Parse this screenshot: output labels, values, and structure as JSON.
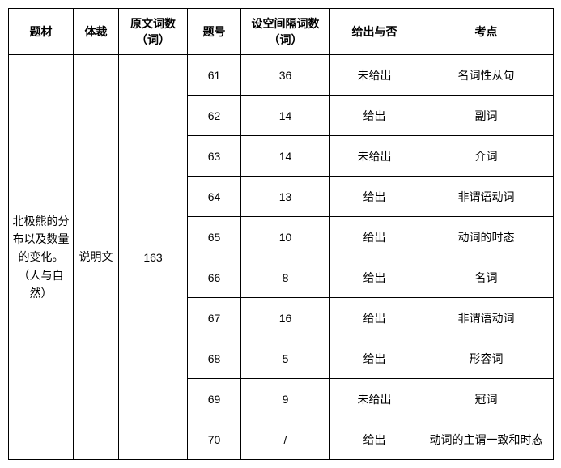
{
  "headers": {
    "topic": "题材",
    "genre": "体裁",
    "words": "原文词数（词）",
    "qnum": "题号",
    "gap": "设空间隔词数（词）",
    "given": "给出与否",
    "point": "考点"
  },
  "merged": {
    "topic": "北极熊的分布以及数量的变化。（人与自然）",
    "genre": "说明文",
    "words": "163"
  },
  "rows": [
    {
      "qnum": "61",
      "gap": "36",
      "given": "未给出",
      "point": "名词性从句"
    },
    {
      "qnum": "62",
      "gap": "14",
      "given": "给出",
      "point": "副词"
    },
    {
      "qnum": "63",
      "gap": "14",
      "given": "未给出",
      "point": "介词"
    },
    {
      "qnum": "64",
      "gap": "13",
      "given": "给出",
      "point": "非谓语动词"
    },
    {
      "qnum": "65",
      "gap": "10",
      "given": "给出",
      "point": "动词的时态"
    },
    {
      "qnum": "66",
      "gap": "8",
      "given": "给出",
      "point": "名词"
    },
    {
      "qnum": "67",
      "gap": "16",
      "given": "给出",
      "point": "非谓语动词"
    },
    {
      "qnum": "68",
      "gap": "5",
      "given": "给出",
      "point": "形容词"
    },
    {
      "qnum": "69",
      "gap": "9",
      "given": "未给出",
      "point": "冠词"
    },
    {
      "qnum": "70",
      "gap": "/",
      "given": "给出",
      "point": "动词的主谓一致和时态"
    }
  ]
}
